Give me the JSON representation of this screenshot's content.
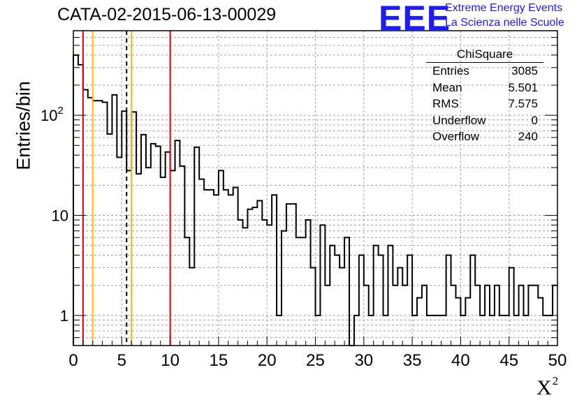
{
  "header": {
    "title": "CATA-02-2015-06-13-00029",
    "logo_text": "EEE",
    "brand_line1": "Extreme Energy Events",
    "brand_line2": "La Scienza nelle Scuole"
  },
  "stats": {
    "title": "ChiSquare",
    "rows": [
      {
        "label": "Entries",
        "value": "3085"
      },
      {
        "label": "Mean",
        "value": "5.501"
      },
      {
        "label": "RMS",
        "value": "7.575"
      },
      {
        "label": "Underflow",
        "value": "0"
      },
      {
        "label": "Overflow",
        "value": "240"
      }
    ]
  },
  "chart_data": {
    "type": "bar",
    "histogram": true,
    "title": "CATA-02-2015-06-13-00029",
    "xlabel": "X",
    "xlabel_superscript": "2",
    "ylabel": "Entries/bin",
    "xlim": [
      0,
      50
    ],
    "ylim": [
      0.5,
      700
    ],
    "yscale": "log",
    "grid": true,
    "x_ticks": [
      "0",
      "5",
      "10",
      "15",
      "20",
      "25",
      "30",
      "35",
      "40",
      "45",
      "50"
    ],
    "y_ticks": [
      {
        "base": "1",
        "exp": ""
      },
      {
        "base": "10",
        "exp": ""
      },
      {
        "base": "10",
        "exp": "2"
      }
    ],
    "bin_width": 0.5,
    "values": [
      400,
      320,
      180,
      150,
      140,
      140,
      135,
      65,
      160,
      38,
      110,
      28,
      108,
      26,
      64,
      30,
      52,
      49,
      24,
      43,
      28,
      56,
      31,
      6,
      3,
      48,
      23,
      18,
      18,
      16,
      28,
      18,
      16,
      19,
      9,
      7.5,
      11.5,
      12,
      14,
      9,
      8,
      16,
      1,
      7,
      13,
      13,
      6,
      6,
      9,
      3,
      1,
      8,
      2,
      5,
      4,
      3,
      6,
      0.2,
      1,
      4,
      2,
      1,
      5,
      4,
      1,
      5,
      2,
      3,
      2,
      4,
      1,
      1.5,
      2,
      1,
      1,
      1,
      1,
      4,
      2,
      1.5,
      1,
      1.5,
      4,
      2,
      1,
      2,
      1,
      2,
      1,
      1,
      3,
      1,
      2,
      1,
      2,
      2,
      1.5,
      1,
      1,
      2
    ],
    "vertical_lines": [
      {
        "x": 1.0,
        "color": "#e00000",
        "style": "solid"
      },
      {
        "x": 2.0,
        "color": "#ffbb00",
        "style": "solid"
      },
      {
        "x": 5.5,
        "color": "#000000",
        "style": "dashed"
      },
      {
        "x": 6.0,
        "color": "#ffbb00",
        "style": "solid"
      },
      {
        "x": 10.0,
        "color": "#e00000",
        "style": "solid"
      }
    ]
  },
  "colors": {
    "logo": "#1d1df0",
    "grid": "#a0a0a0",
    "histogram": "#000000"
  }
}
